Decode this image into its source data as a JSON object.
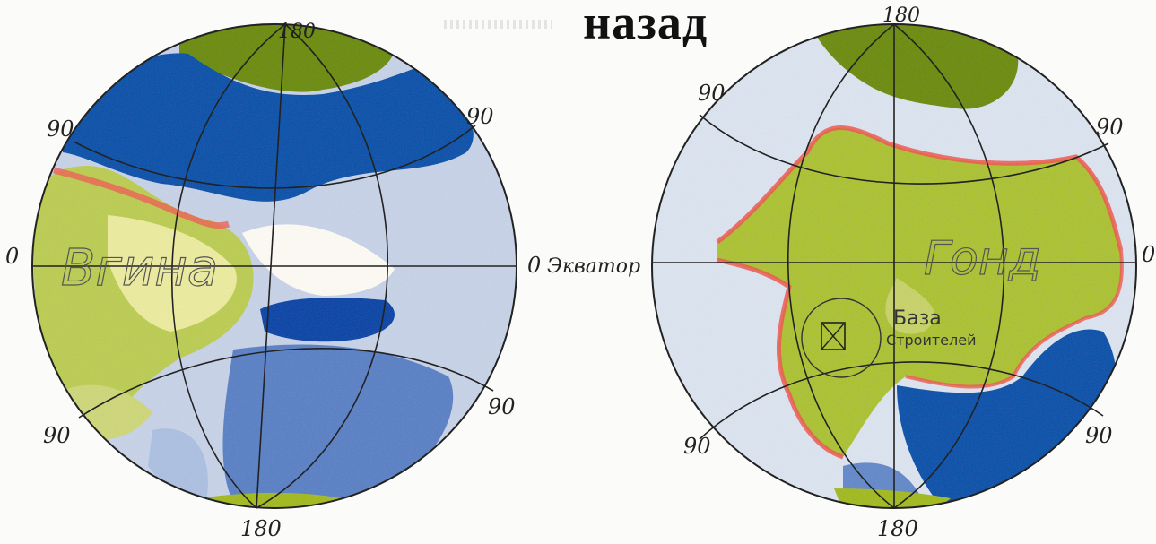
{
  "nav": {
    "back_label": "назад"
  },
  "colors": {
    "ocean_deep": "#234fa0",
    "ocean_light": "#aebfdc",
    "land_green": "#9fb53a",
    "land_yellow": "#e3e39a",
    "coast_red": "#e85a55",
    "grid": "#222222"
  },
  "globe_left": {
    "region_label": "Вгина",
    "grid_labels": {
      "top": "180",
      "upper_left": "90",
      "upper_right": "90",
      "left": "0",
      "right": "0",
      "equator": "Экватор",
      "lower_left": "90",
      "lower_right": "90",
      "bottom": "180"
    }
  },
  "globe_right": {
    "region_label": "Гонд",
    "base_label_1": "База",
    "base_label_2": "Строителей",
    "grid_labels": {
      "top": "180",
      "upper_left": "90",
      "upper_right": "90",
      "right": "0",
      "lower_left": "90",
      "lower_right": "90",
      "bottom": "180"
    }
  }
}
